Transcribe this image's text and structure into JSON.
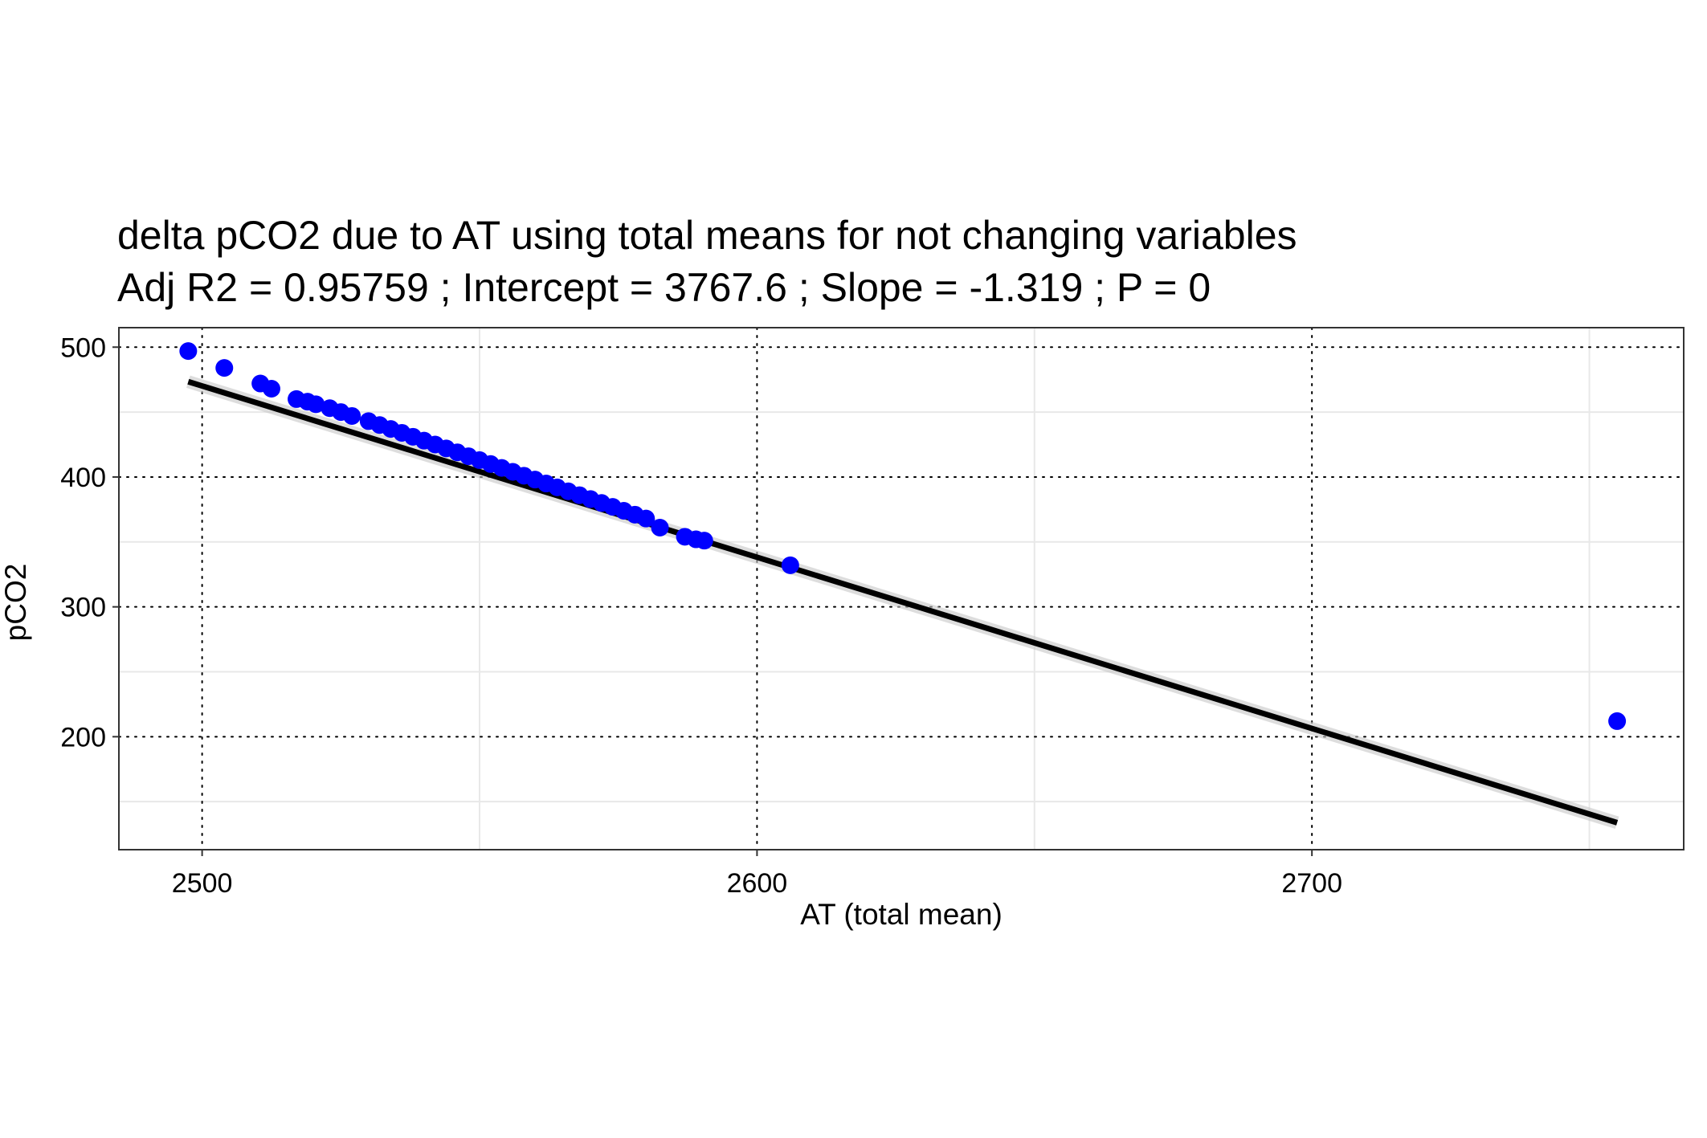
{
  "chart_data": {
    "type": "scatter",
    "title": "delta pCO2 due to AT using total means for not changing variables",
    "subtitle": "Adj R2 =  0.95759 ; Intercept = 3767.6 ; Slope = -1.319 ; P = 0",
    "xlabel": "AT (total mean)",
    "ylabel": "pCO2",
    "xlim": [
      2485,
      2767
    ],
    "ylim": [
      113,
      515
    ],
    "x_ticks": [
      2500,
      2600,
      2700
    ],
    "x_tick_labels": [
      "2500",
      "2600",
      "2700"
    ],
    "y_ticks": [
      200,
      300,
      400,
      500
    ],
    "y_tick_labels": [
      "200",
      "300",
      "400",
      "500"
    ],
    "x_minor_ticks": [
      2550,
      2650,
      2750
    ],
    "y_minor_ticks": [
      150,
      250,
      350,
      450
    ],
    "grid": true,
    "legend": "none",
    "point_color": "#0000ff",
    "line_color": "#000000",
    "series": [
      {
        "values": [
          [
            2497.5,
            497
          ],
          [
            2504,
            484
          ],
          [
            2510.5,
            472
          ],
          [
            2512.5,
            468
          ],
          [
            2517,
            460
          ],
          [
            2519,
            458
          ],
          [
            2520.5,
            456
          ],
          [
            2523,
            453
          ],
          [
            2525,
            450
          ],
          [
            2527,
            447
          ],
          [
            2530,
            443
          ],
          [
            2532,
            440
          ],
          [
            2534,
            437
          ],
          [
            2536,
            434
          ],
          [
            2538,
            431
          ],
          [
            2540,
            428
          ],
          [
            2542,
            425
          ],
          [
            2544,
            422
          ],
          [
            2546,
            419
          ],
          [
            2548,
            416
          ],
          [
            2550,
            413
          ],
          [
            2552,
            410
          ],
          [
            2554,
            407
          ],
          [
            2556,
            404
          ],
          [
            2558,
            401
          ],
          [
            2560,
            398
          ],
          [
            2562,
            395
          ],
          [
            2564,
            392
          ],
          [
            2566,
            389
          ],
          [
            2568,
            386
          ],
          [
            2570,
            383
          ],
          [
            2572,
            380
          ],
          [
            2574,
            377
          ],
          [
            2576,
            374
          ],
          [
            2578,
            371
          ],
          [
            2580,
            368
          ],
          [
            2582.5,
            361
          ],
          [
            2587,
            354
          ],
          [
            2589,
            352
          ],
          [
            2590.5,
            351
          ],
          [
            2606,
            332
          ],
          [
            2755,
            212
          ]
        ]
      }
    ],
    "fit_line": {
      "x": [
        2497.5,
        2755
      ],
      "y": [
        473.4,
        133.8
      ]
    }
  }
}
